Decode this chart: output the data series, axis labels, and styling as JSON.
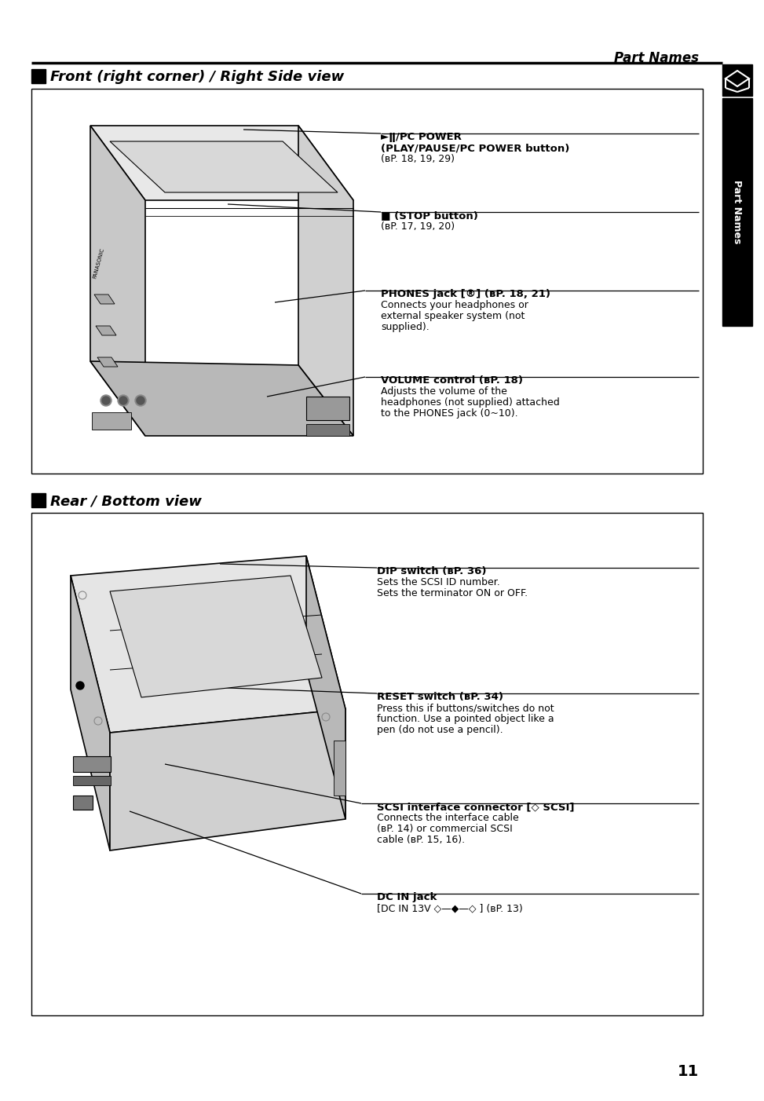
{
  "page_bg": "#ffffff",
  "text_color": "#000000",
  "page_number": "11",
  "header_title": "Part Names",
  "section1_title": "Front (right corner) / Right Side view",
  "section2_title": "Rear / Bottom view",
  "sidebar_label": "Part Names",
  "s1_annotations": [
    {
      "lines": [
        "►ǁ/PC POWER",
        "(PLAY/PAUSE/PC POWER button)",
        "(вP. 18, 19, 29)"
      ],
      "bold": [
        true,
        true,
        false
      ]
    },
    {
      "lines": [
        "■ (STOP button)",
        "(вP. 17, 19, 20)"
      ],
      "bold": [
        true,
        false
      ]
    },
    {
      "lines": [
        "PHONES jack [®] (вP. 18, 21)",
        "Connects your headphones or",
        "external speaker system (not",
        "supplied)."
      ],
      "bold": [
        true,
        false,
        false,
        false
      ]
    },
    {
      "lines": [
        "VOLUME control (вP. 18)",
        "Adjusts the volume of the",
        "headphones (not supplied) attached",
        "to the PHONES jack (0~10)."
      ],
      "bold": [
        true,
        false,
        false,
        false
      ]
    }
  ],
  "s2_annotations": [
    {
      "lines": [
        "DIP switch (вP. 36)",
        "Sets the SCSI ID number.",
        "Sets the terminator ON or OFF."
      ],
      "bold": [
        true,
        false,
        false
      ]
    },
    {
      "lines": [
        "RESET switch (вP. 34)",
        "Press this if buttons/switches do not",
        "function. Use a pointed object like a",
        "pen (do not use a pencil)."
      ],
      "bold": [
        true,
        false,
        false,
        false
      ]
    },
    {
      "lines": [
        "SCSI interface connector [◇ SCSI]",
        "Connects the interface cable",
        "(вP. 14) or commercial SCSI",
        "cable (вP. 15, 16)."
      ],
      "bold": [
        true,
        false,
        false,
        false
      ]
    },
    {
      "lines": [
        "DC IN jack",
        "[DC IN 13V ◇—◆—◇ ] (вP. 13)"
      ],
      "bold": [
        true,
        false
      ]
    }
  ]
}
